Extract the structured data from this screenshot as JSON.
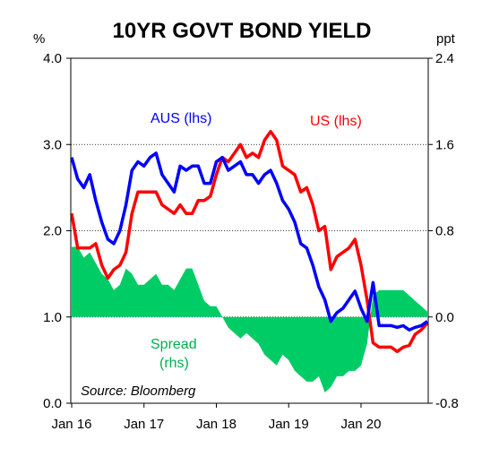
{
  "chart_data": {
    "type": "line",
    "title": "10YR GOVT BOND YIELD",
    "left_unit": "%",
    "right_unit": "ppt",
    "source": "Source: Bloomberg",
    "x_tick_labels": [
      "Jan 16",
      "Jan 17",
      "Jan 18",
      "Jan 19",
      "Jan 20"
    ],
    "x_range": [
      "2016-01",
      "2020-12"
    ],
    "y_left": {
      "range": [
        0.0,
        4.0
      ],
      "ticks": [
        0.0,
        1.0,
        2.0,
        3.0,
        4.0
      ],
      "tick_labels": [
        "0.0",
        "1.0",
        "2.0",
        "3.0",
        "4.0"
      ]
    },
    "y_right": {
      "range": [
        -0.8,
        2.4
      ],
      "ticks": [
        -0.8,
        0.0,
        0.8,
        1.6,
        2.4
      ],
      "tick_labels": [
        "-0.8",
        "0.0",
        "0.8",
        "1.6",
        "2.4"
      ]
    },
    "grid": "horizontal dotted",
    "x": [
      "2016-01",
      "2016-02",
      "2016-03",
      "2016-04",
      "2016-05",
      "2016-06",
      "2016-07",
      "2016-08",
      "2016-09",
      "2016-10",
      "2016-11",
      "2016-12",
      "2017-01",
      "2017-02",
      "2017-03",
      "2017-04",
      "2017-05",
      "2017-06",
      "2017-07",
      "2017-08",
      "2017-09",
      "2017-10",
      "2017-11",
      "2017-12",
      "2018-01",
      "2018-02",
      "2018-03",
      "2018-04",
      "2018-05",
      "2018-06",
      "2018-07",
      "2018-08",
      "2018-09",
      "2018-10",
      "2018-11",
      "2018-12",
      "2019-01",
      "2019-02",
      "2019-03",
      "2019-04",
      "2019-05",
      "2019-06",
      "2019-07",
      "2019-08",
      "2019-09",
      "2019-10",
      "2019-11",
      "2019-12",
      "2020-01",
      "2020-02",
      "2020-03",
      "2020-04",
      "2020-05",
      "2020-06",
      "2020-07",
      "2020-08",
      "2020-09",
      "2020-10",
      "2020-11",
      "2020-12"
    ],
    "series": [
      {
        "name": "AUS (lhs)",
        "axis": "left",
        "color": "#0000ff",
        "values": [
          2.85,
          2.6,
          2.5,
          2.65,
          2.35,
          2.1,
          1.9,
          1.85,
          2.0,
          2.3,
          2.7,
          2.8,
          2.75,
          2.85,
          2.9,
          2.65,
          2.55,
          2.45,
          2.75,
          2.7,
          2.75,
          2.75,
          2.55,
          2.55,
          2.8,
          2.85,
          2.7,
          2.75,
          2.8,
          2.65,
          2.65,
          2.55,
          2.65,
          2.7,
          2.55,
          2.35,
          2.25,
          2.1,
          1.85,
          1.8,
          1.6,
          1.35,
          1.2,
          0.95,
          1.05,
          1.1,
          1.2,
          1.3,
          1.1,
          0.95,
          1.4,
          0.9,
          0.9,
          0.9,
          0.88,
          0.9,
          0.85,
          0.88,
          0.9,
          0.95
        ]
      },
      {
        "name": "US (lhs)",
        "axis": "left",
        "color": "#ff0000",
        "values": [
          2.2,
          1.8,
          1.8,
          1.8,
          1.85,
          1.6,
          1.45,
          1.55,
          1.6,
          1.75,
          2.2,
          2.45,
          2.45,
          2.45,
          2.45,
          2.3,
          2.25,
          2.2,
          2.3,
          2.2,
          2.2,
          2.35,
          2.35,
          2.4,
          2.65,
          2.85,
          2.8,
          2.9,
          3.0,
          2.85,
          2.9,
          2.85,
          3.05,
          3.15,
          3.05,
          2.75,
          2.7,
          2.65,
          2.45,
          2.5,
          2.3,
          2.0,
          2.05,
          1.55,
          1.7,
          1.75,
          1.8,
          1.9,
          1.6,
          1.2,
          0.7,
          0.65,
          0.65,
          0.65,
          0.6,
          0.65,
          0.67,
          0.8,
          0.85,
          0.93
        ]
      },
      {
        "name": "Spread (rhs)",
        "axis": "right",
        "type": "area",
        "color": "#00cc66",
        "values": [
          0.65,
          0.65,
          0.55,
          0.6,
          0.5,
          0.4,
          0.35,
          0.25,
          0.3,
          0.45,
          0.4,
          0.3,
          0.3,
          0.35,
          0.4,
          0.3,
          0.3,
          0.25,
          0.35,
          0.45,
          0.45,
          0.3,
          0.15,
          0.1,
          0.1,
          0.0,
          -0.1,
          -0.15,
          -0.2,
          -0.15,
          -0.2,
          -0.25,
          -0.35,
          -0.4,
          -0.45,
          -0.35,
          -0.4,
          -0.5,
          -0.55,
          -0.6,
          -0.6,
          -0.55,
          -0.7,
          -0.65,
          -0.55,
          -0.55,
          -0.5,
          -0.5,
          -0.45,
          -0.25,
          0.2,
          0.25,
          0.25,
          0.25,
          0.25,
          0.25,
          0.2,
          0.15,
          0.1,
          0.05
        ]
      }
    ],
    "annotations": [
      {
        "text": "AUS (lhs)",
        "color": "#0000ff"
      },
      {
        "text": "US (lhs)",
        "color": "#ff0000"
      },
      {
        "text": "Spread",
        "color": "#00b050"
      },
      {
        "text": "(rhs)",
        "color": "#00b050"
      }
    ]
  }
}
